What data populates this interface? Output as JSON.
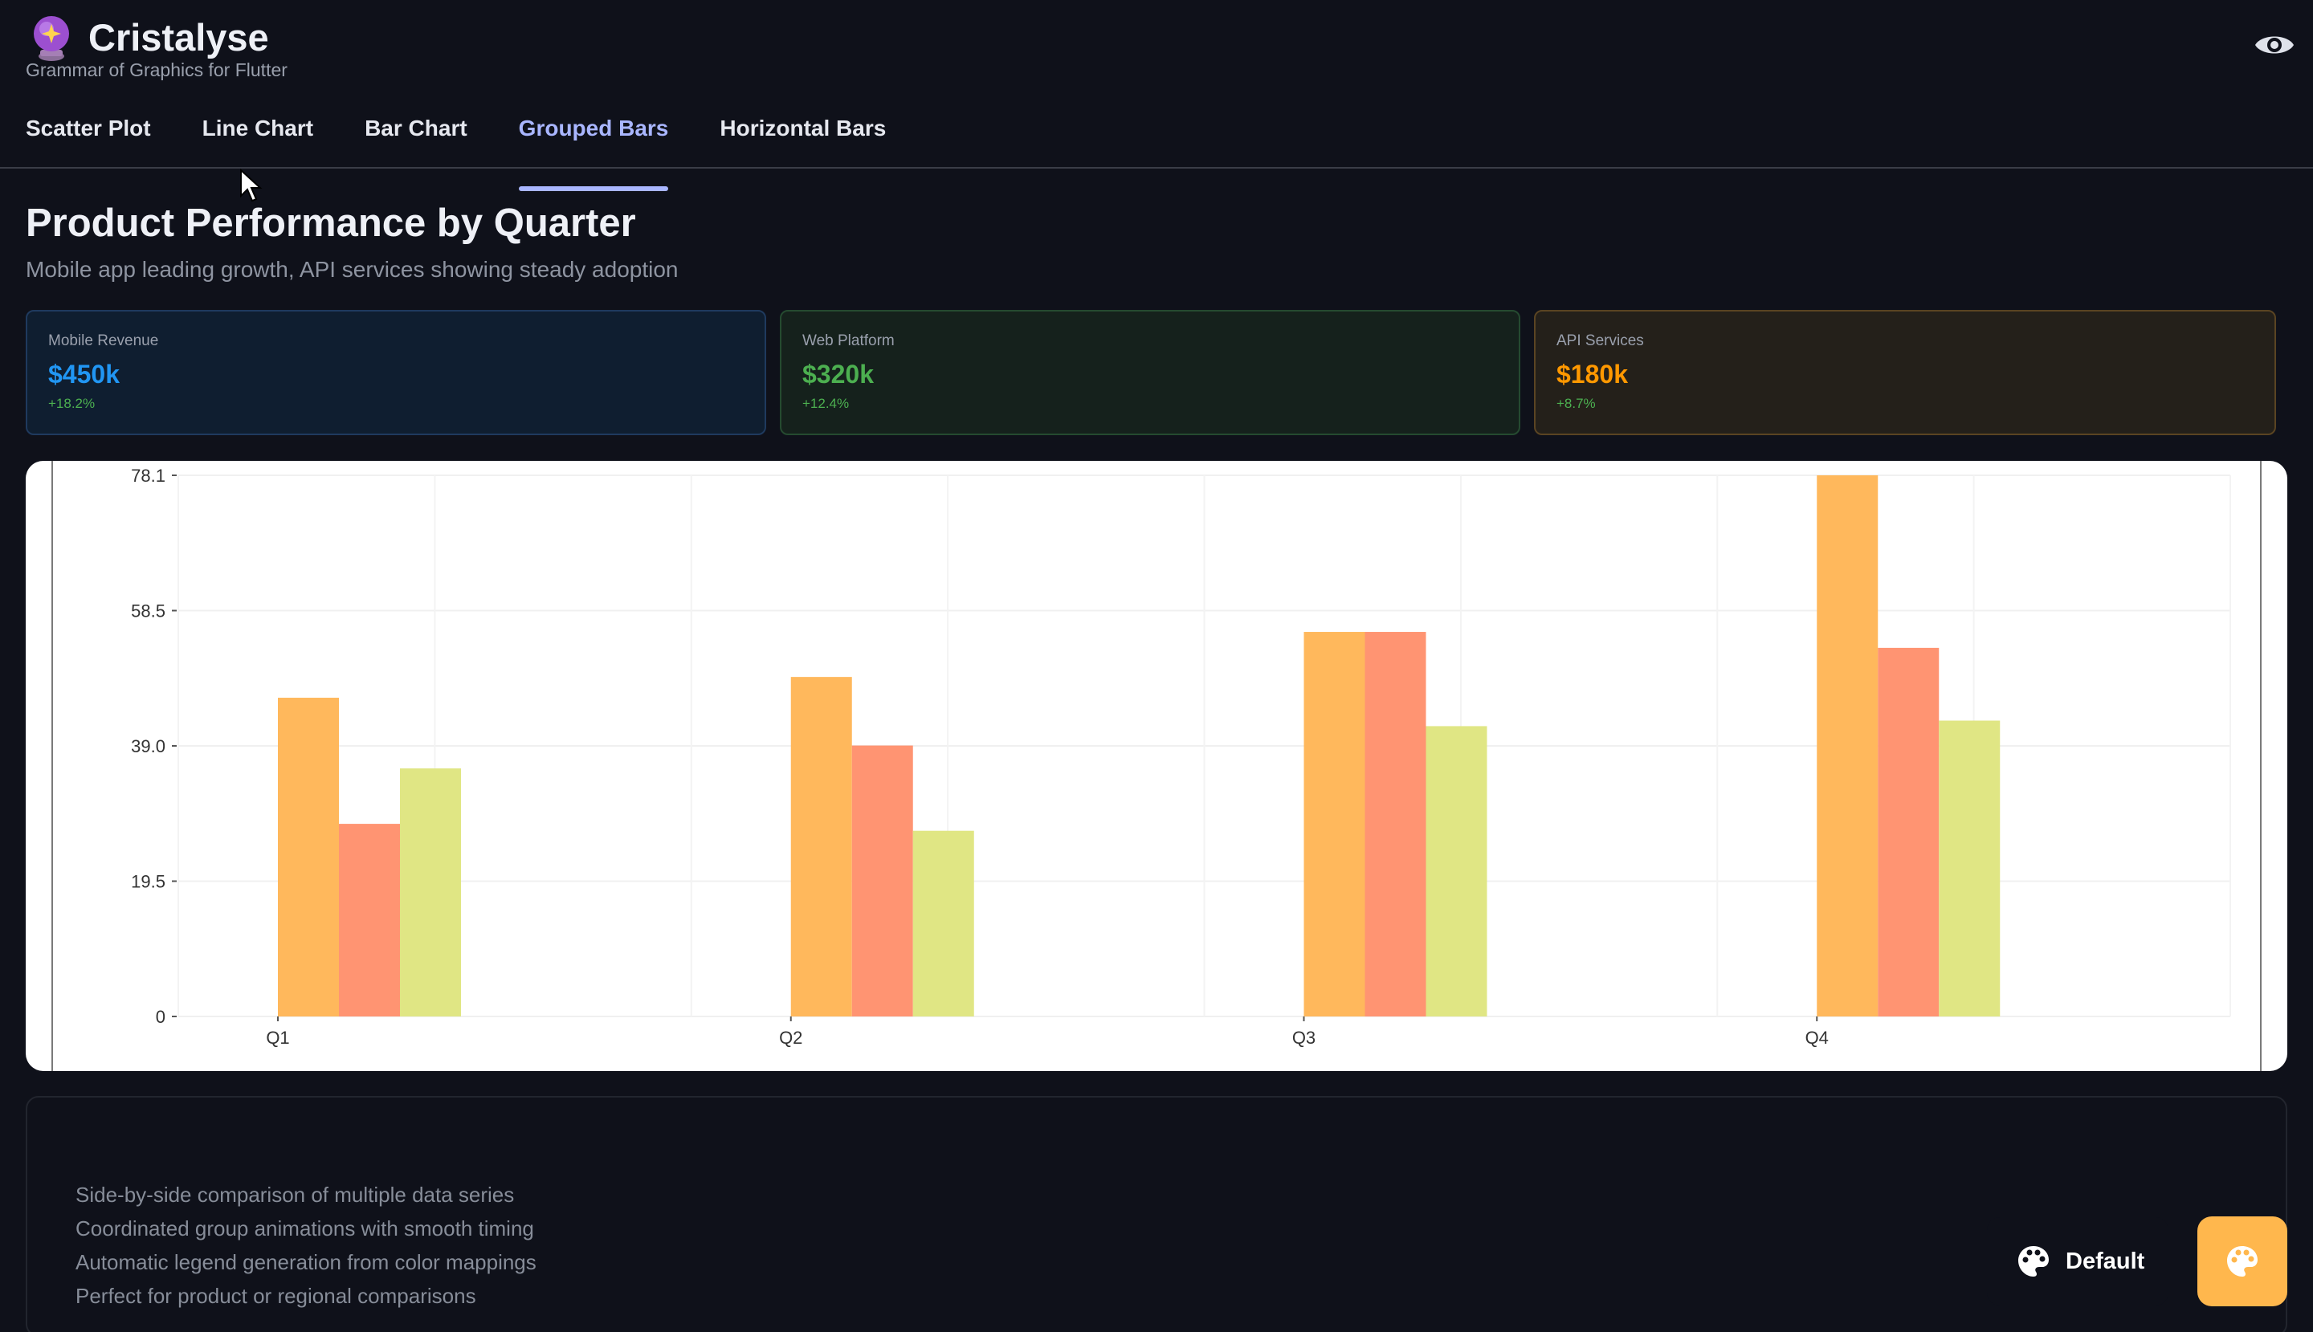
{
  "app": {
    "title": "Cristalyse",
    "subtitle": "Grammar of Graphics for Flutter",
    "logo_icon": "crystal-ball-icon",
    "visibility_icon": "eye-icon"
  },
  "tabs": [
    {
      "label": "Scatter Plot",
      "active": false
    },
    {
      "label": "Line Chart",
      "active": false
    },
    {
      "label": "Bar Chart",
      "active": false
    },
    {
      "label": "Grouped Bars",
      "active": true
    },
    {
      "label": "Horizontal Bars",
      "active": false
    }
  ],
  "page": {
    "title": "Product Performance by Quarter",
    "subtitle": "Mobile app leading growth, API services showing steady adoption"
  },
  "stats": [
    {
      "label": "Mobile Revenue",
      "value": "$450k",
      "change": "+18.2%",
      "color": "#2196f3"
    },
    {
      "label": "Web Platform",
      "value": "$320k",
      "change": "+12.4%",
      "color": "#4caf50"
    },
    {
      "label": "API Services",
      "value": "$180k",
      "change": "+8.7%",
      "color": "#ff9800"
    }
  ],
  "chart_data": {
    "type": "bar",
    "categories": [
      "Q1",
      "Q2",
      "Q3",
      "Q4"
    ],
    "series": [
      {
        "values": [
          46.0,
          49.0,
          55.5,
          78.1
        ],
        "color": "#ffb85c"
      },
      {
        "values": [
          27.8,
          39.1,
          55.5,
          53.2
        ],
        "color": "#ff9472"
      },
      {
        "values": [
          35.8,
          26.8,
          41.9,
          42.7
        ],
        "color": "#e0e684"
      }
    ],
    "yticks": [
      "0",
      "19.5",
      "39.0",
      "58.5",
      "78.1"
    ],
    "ylim": [
      0,
      78.1
    ],
    "grid": true,
    "title": "",
    "xlabel": "",
    "ylabel": ""
  },
  "features": [
    "Side-by-side comparison of multiple data series",
    "Coordinated group animations with smooth timing",
    "Automatic legend generation from color mappings",
    "Perfect for product or regional comparisons"
  ],
  "theme": {
    "label": "Default",
    "icon": "palette-icon",
    "fab_color": "#ffb74d"
  }
}
